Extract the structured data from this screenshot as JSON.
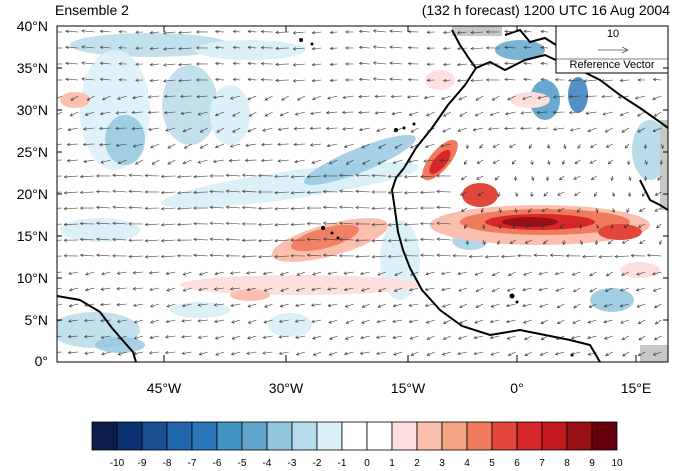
{
  "header": {
    "ensemble_label": "Ensemble 2",
    "forecast_label": "(132 h forecast) 1200 UTC 16 Aug 2004"
  },
  "reference_vector": {
    "magnitude": "10",
    "label": "Reference Vector"
  },
  "axes": {
    "lat_ticks": [
      "40°N",
      "35°N",
      "30°N",
      "25°N",
      "20°N",
      "15°N",
      "10°N",
      "5°N",
      "0°"
    ],
    "lon_ticks": [
      "45°W",
      "30°W",
      "15°W",
      "0°",
      "15°E"
    ]
  },
  "colorbar": {
    "labels": [
      "-10",
      "-9",
      "-8",
      "-7",
      "-6",
      "-5",
      "-4",
      "-3",
      "-2",
      "-1",
      "0",
      "1",
      "2",
      "3",
      "4",
      "5",
      "6",
      "7",
      "8",
      "9",
      "10"
    ],
    "colors": [
      "#0b1e4e",
      "#0c3272",
      "#1a4f8f",
      "#2166ac",
      "#2a75b8",
      "#4393c3",
      "#62a6d0",
      "#92c5de",
      "#b8dcea",
      "#dcf0f8",
      "#ffffff",
      "#ffffff",
      "#fde0dd",
      "#fbbfb0",
      "#f4a582",
      "#f07a5c",
      "#e3463a",
      "#d6282b",
      "#c0181d",
      "#980f15",
      "#67000d"
    ]
  },
  "colors": {
    "land_gray": "#c8c8c8",
    "coastline": "#000000",
    "arrow": "#333333"
  }
}
